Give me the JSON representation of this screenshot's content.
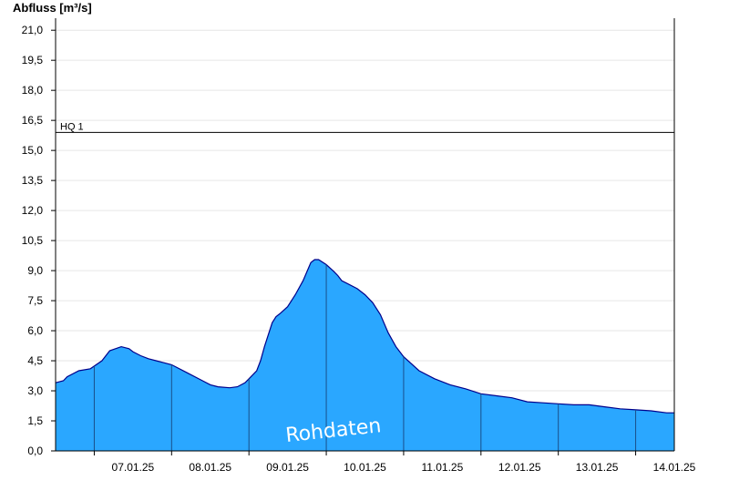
{
  "chart_data": {
    "type": "area",
    "ylabel": "Abfluss [m³/s]",
    "ylim": [
      0,
      21.6
    ],
    "yticks": [
      "0,0",
      "1,5",
      "3,0",
      "4,5",
      "6,0",
      "7,5",
      "9,0",
      "10,5",
      "12,0",
      "13,5",
      "15,0",
      "16,5",
      "18,0",
      "19,5",
      "21,0"
    ],
    "xlim": [
      6.5,
      14.5
    ],
    "xtick_labels": [
      "07.01.25",
      "08.01.25",
      "09.01.25",
      "10.01.25",
      "11.01.25",
      "12.01.25",
      "13.01.25",
      "14.01.25"
    ],
    "grid": true,
    "fill_color": "#2aa7ff",
    "line_color": "#00008b",
    "reference_line": {
      "label": "HQ 1",
      "value": 15.9
    },
    "watermark": "Rohdaten",
    "series": [
      {
        "x": [
          6.5,
          6.6,
          6.65,
          6.8,
          6.95,
          7.1,
          7.2,
          7.35,
          7.45,
          7.5,
          7.6,
          7.7,
          7.8,
          7.9,
          8.0,
          8.2,
          8.4,
          8.5,
          8.6,
          8.75,
          8.85,
          8.95,
          9.0,
          9.1,
          9.15,
          9.2,
          9.3,
          9.35,
          9.4,
          9.5,
          9.6,
          9.7,
          9.8,
          9.85,
          9.9,
          10.0,
          10.1,
          10.15,
          10.2,
          10.4,
          10.5,
          10.6,
          10.7,
          10.8,
          10.9,
          11.0,
          11.2,
          11.4,
          11.6,
          11.8,
          12.0,
          12.2,
          12.4,
          12.6,
          12.8,
          13.0,
          13.2,
          13.4,
          13.6,
          13.8,
          14.0,
          14.2,
          14.4,
          14.5
        ],
        "y": [
          3.4,
          3.5,
          3.7,
          4.0,
          4.1,
          4.5,
          5.0,
          5.2,
          5.1,
          4.95,
          4.75,
          4.6,
          4.5,
          4.4,
          4.3,
          3.9,
          3.5,
          3.3,
          3.2,
          3.15,
          3.2,
          3.4,
          3.6,
          4.0,
          4.5,
          5.2,
          6.4,
          6.7,
          6.85,
          7.2,
          7.8,
          8.5,
          9.4,
          9.55,
          9.55,
          9.3,
          8.95,
          8.75,
          8.5,
          8.1,
          7.8,
          7.4,
          6.8,
          5.9,
          5.2,
          4.7,
          4.0,
          3.6,
          3.3,
          3.1,
          2.85,
          2.75,
          2.65,
          2.45,
          2.4,
          2.35,
          2.3,
          2.3,
          2.2,
          2.1,
          2.05,
          2.0,
          1.9,
          1.9
        ]
      }
    ]
  }
}
